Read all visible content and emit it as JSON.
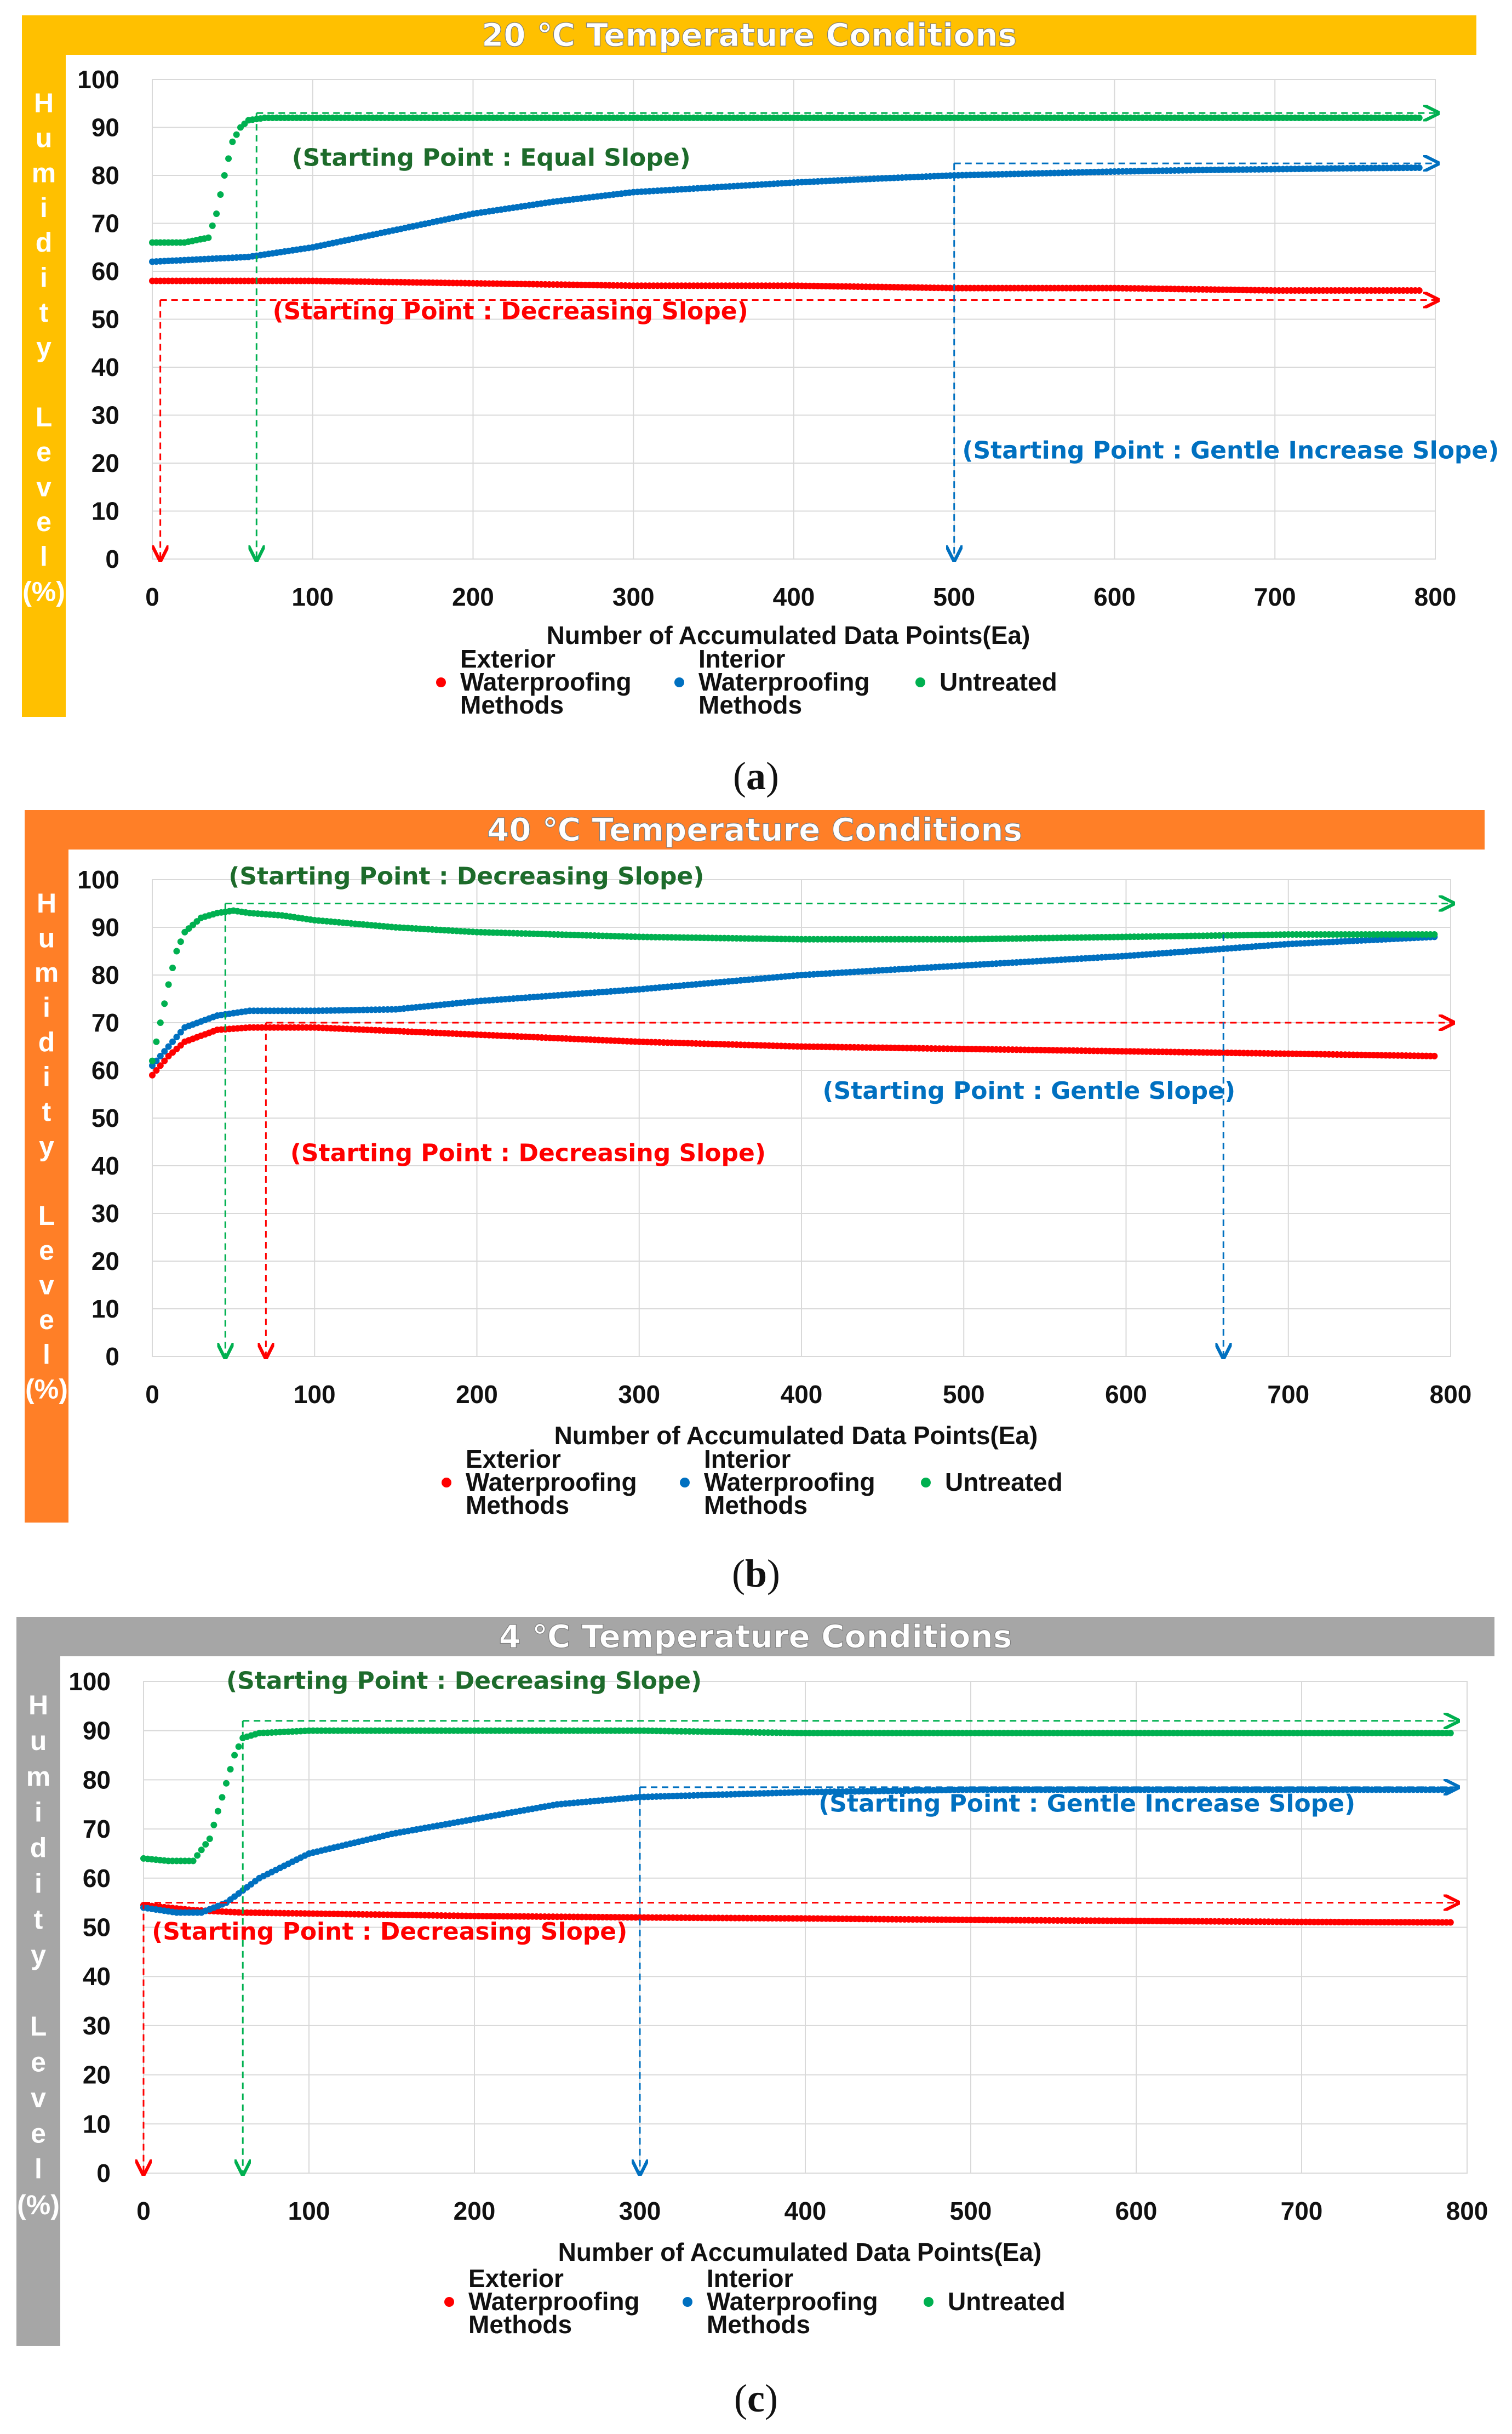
{
  "chart_data": [
    {
      "type": "scatter",
      "id": "a",
      "title": "20 ℃ Temperature Conditions",
      "banner_color": "#FFC000",
      "xlabel": "Number of Accumulated Data Points(Ea)",
      "ylabel": "Humidity Level(%)",
      "ylabel_chars": [
        "H",
        "u",
        "m",
        "i",
        "d",
        "i",
        "t",
        "y",
        "",
        "L",
        "e",
        "v",
        "e",
        "l",
        "(%)"
      ],
      "xlim": [
        0,
        800
      ],
      "ylim": [
        0,
        100
      ],
      "xticks": [
        "0",
        "100",
        "200",
        "300",
        "400",
        "500",
        "600",
        "700",
        "800"
      ],
      "yticks": [
        "0",
        "10",
        "20",
        "30",
        "40",
        "50",
        "60",
        "70",
        "80",
        "90",
        "100"
      ],
      "grid": true,
      "legend": {
        "position": "bottom",
        "entries": [
          {
            "label_lines": [
              "Exterior",
              "Waterproofing",
              "Methods"
            ],
            "color": "#FF0000"
          },
          {
            "label_lines": [
              "Interior",
              "Waterproofing",
              "Methods"
            ],
            "color": "#0070C0"
          },
          {
            "label_lines": [
              "Untreated"
            ],
            "color": "#00B050"
          }
        ]
      },
      "series": [
        {
          "name": "Exterior Waterproofing Methods",
          "color": "#FF0000",
          "x": [
            0,
            50,
            100,
            200,
            300,
            400,
            500,
            600,
            700,
            790
          ],
          "y": [
            58,
            58,
            58,
            57.5,
            57,
            57,
            56.5,
            56.5,
            56,
            56
          ]
        },
        {
          "name": "Interior Waterproofing Methods",
          "color": "#0070C0",
          "x": [
            0,
            30,
            60,
            80,
            100,
            150,
            200,
            250,
            300,
            350,
            400,
            450,
            500,
            550,
            600,
            650,
            700,
            750,
            790
          ],
          "y": [
            62,
            62.5,
            63,
            64,
            65,
            68.5,
            72,
            74.5,
            76.5,
            77.5,
            78.5,
            79.3,
            80,
            80.4,
            80.8,
            81.1,
            81.3,
            81.5,
            81.6
          ]
        },
        {
          "name": "Untreated",
          "color": "#00B050",
          "x": [
            0,
            20,
            35,
            40,
            45,
            50,
            55,
            60,
            70,
            100,
            200,
            300,
            400,
            500,
            600,
            700,
            790
          ],
          "y": [
            66,
            66,
            67,
            72,
            80,
            87,
            90,
            91.5,
            92,
            92,
            92,
            92,
            92,
            92,
            92,
            92,
            92
          ]
        }
      ],
      "annotations": [
        {
          "text": "(Starting Point : Equal Slope)",
          "color": "#1D6B2B",
          "x": 87,
          "y": 82,
          "anchor": "start"
        },
        {
          "text": "(Starting Point : Decreasing Slope)",
          "color": "#FF0000",
          "x": 75,
          "y": 50,
          "anchor": "start"
        },
        {
          "text": "(Starting Point : Gentle Increase Slope)",
          "color": "#0070C0",
          "x": 505,
          "y": 21,
          "anchor": "start"
        }
      ],
      "guides": [
        {
          "color": "#FF0000",
          "x0": 5,
          "y0": 54,
          "x1": 800,
          "y1": 54,
          "down_x": 5
        },
        {
          "color": "#00B050",
          "x0": 65,
          "y0": 93,
          "x1": 800,
          "y1": 93,
          "down_x": 65
        },
        {
          "color": "#0070C0",
          "x0": 500,
          "y0": 82.5,
          "x1": 800,
          "y1": 82.5,
          "down_x": 500
        }
      ],
      "caption": "a"
    },
    {
      "type": "scatter",
      "id": "b",
      "title": "40 ℃ Temperature Conditions",
      "banner_color": "#FF7F27",
      "xlabel": "Number of Accumulated Data Points(Ea)",
      "ylabel": "Humidity Level(%)",
      "ylabel_chars": [
        "H",
        "u",
        "m",
        "i",
        "d",
        "i",
        "t",
        "y",
        "",
        "L",
        "e",
        "v",
        "e",
        "l",
        "(%)"
      ],
      "xlim": [
        0,
        800
      ],
      "ylim": [
        0,
        100
      ],
      "xticks": [
        "0",
        "100",
        "200",
        "300",
        "400",
        "500",
        "600",
        "700",
        "800"
      ],
      "yticks": [
        "0",
        "10",
        "20",
        "30",
        "40",
        "50",
        "60",
        "70",
        "80",
        "90",
        "100"
      ],
      "grid": true,
      "legend": {
        "position": "bottom",
        "entries": [
          {
            "label_lines": [
              "Exterior",
              "Waterproofing",
              "Methods"
            ],
            "color": "#FF0000"
          },
          {
            "label_lines": [
              "Interior",
              "Waterproofing",
              "Methods"
            ],
            "color": "#0070C0"
          },
          {
            "label_lines": [
              "Untreated"
            ],
            "color": "#00B050"
          }
        ]
      },
      "series": [
        {
          "name": "Exterior Waterproofing Methods",
          "color": "#FF0000",
          "x": [
            0,
            10,
            20,
            40,
            60,
            80,
            100,
            200,
            300,
            400,
            500,
            600,
            700,
            790
          ],
          "y": [
            59,
            63,
            66,
            68.5,
            69,
            69,
            69,
            67.5,
            66,
            65,
            64.5,
            64,
            63.5,
            63
          ]
        },
        {
          "name": "Interior Waterproofing Methods",
          "color": "#0070C0",
          "x": [
            0,
            10,
            20,
            40,
            60,
            80,
            100,
            150,
            200,
            300,
            400,
            500,
            600,
            700,
            790
          ],
          "y": [
            61,
            65,
            69,
            71.5,
            72.5,
            72.5,
            72.5,
            72.8,
            74.5,
            77,
            80,
            82,
            84,
            86.5,
            88
          ]
        },
        {
          "name": "Untreated",
          "color": "#00B050",
          "x": [
            0,
            5,
            10,
            15,
            20,
            30,
            40,
            50,
            60,
            80,
            100,
            150,
            200,
            300,
            400,
            500,
            600,
            700,
            790
          ],
          "y": [
            62,
            70,
            78,
            85,
            89,
            92,
            93,
            93.5,
            93,
            92.5,
            91.5,
            90,
            89,
            88,
            87.5,
            87.5,
            88,
            88.5,
            88.5
          ]
        }
      ],
      "annotations": [
        {
          "text": "(Starting Point : Decreasing Slope)",
          "color": "#1D6B2B",
          "x": 47,
          "y": 99,
          "anchor": "start"
        },
        {
          "text": "(Starting Point : Gentle Slope)",
          "color": "#0070C0",
          "x": 413,
          "y": 54,
          "anchor": "start"
        },
        {
          "text": "(Starting Point : Decreasing Slope)",
          "color": "#FF0000",
          "x": 85,
          "y": 41,
          "anchor": "start"
        }
      ],
      "guides": [
        {
          "color": "#00B050",
          "x0": 45,
          "y0": 95,
          "x1": 800,
          "y1": 95,
          "down_x": 45
        },
        {
          "color": "#FF0000",
          "x0": 70,
          "y0": 70,
          "x1": 800,
          "y1": 70,
          "down_x": 70
        },
        {
          "color": "#0070C0",
          "x0": 660,
          "y0": 88.5,
          "x1": 660,
          "y1": 88.5,
          "down_x": 660
        }
      ],
      "caption": "b"
    },
    {
      "type": "scatter",
      "id": "c",
      "title": "4 ℃ Temperature Conditions",
      "banner_color": "#A6A6A6",
      "xlabel": "Number of Accumulated Data Points(Ea)",
      "ylabel": "Humidity Level(%)",
      "ylabel_chars": [
        "H",
        "u",
        "m",
        "i",
        "d",
        "i",
        "t",
        "y",
        "",
        "L",
        "e",
        "v",
        "e",
        "l",
        "(%)"
      ],
      "xlim": [
        0,
        800
      ],
      "ylim": [
        0,
        100
      ],
      "xticks": [
        "0",
        "100",
        "200",
        "300",
        "400",
        "500",
        "600",
        "700",
        "800"
      ],
      "yticks": [
        "0",
        "10",
        "20",
        "30",
        "40",
        "50",
        "60",
        "70",
        "80",
        "90",
        "100"
      ],
      "grid": true,
      "legend": {
        "position": "bottom",
        "entries": [
          {
            "label_lines": [
              "Exterior",
              "Waterproofing",
              "Methods"
            ],
            "color": "#FF0000"
          },
          {
            "label_lines": [
              "Interior",
              "Waterproofing",
              "Methods"
            ],
            "color": "#0070C0"
          },
          {
            "label_lines": [
              "Untreated"
            ],
            "color": "#00B050"
          }
        ]
      },
      "series": [
        {
          "name": "Exterior Waterproofing Methods",
          "color": "#FF0000",
          "x": [
            0,
            30,
            60,
            100,
            200,
            300,
            400,
            500,
            600,
            700,
            790
          ],
          "y": [
            54.5,
            53.5,
            53,
            52.8,
            52.3,
            52,
            51.8,
            51.5,
            51.3,
            51.1,
            51
          ]
        },
        {
          "name": "Interior Waterproofing Methods",
          "color": "#0070C0",
          "x": [
            0,
            20,
            35,
            50,
            70,
            100,
            150,
            200,
            250,
            300,
            350,
            400,
            500,
            600,
            700,
            790
          ],
          "y": [
            54,
            53,
            53,
            55,
            60,
            65,
            69,
            72,
            75,
            76.5,
            77,
            77.5,
            78,
            78,
            78,
            78
          ]
        },
        {
          "name": "Untreated",
          "color": "#00B050",
          "x": [
            0,
            15,
            30,
            40,
            48,
            55,
            60,
            70,
            100,
            200,
            300,
            400,
            500,
            600,
            700,
            790
          ],
          "y": [
            64,
            63.5,
            63.5,
            68,
            77,
            85,
            88.5,
            89.5,
            90,
            90,
            90,
            89.5,
            89.5,
            89.5,
            89.5,
            89.5
          ]
        }
      ],
      "annotations": [
        {
          "text": "(Starting Point : Decreasing Slope)",
          "color": "#1D6B2B",
          "x": 50,
          "y": 98.5,
          "anchor": "start"
        },
        {
          "text": "(Starting Point : Gentle Increase Slope)",
          "color": "#0070C0",
          "x": 408,
          "y": 73.5,
          "anchor": "start"
        },
        {
          "text": "(Starting Point : Decreasing Slope)",
          "color": "#FF0000",
          "x": 5,
          "y": 47.5,
          "anchor": "start"
        }
      ],
      "guides": [
        {
          "color": "#FF0000",
          "x0": 0,
          "y0": 55,
          "x1": 793,
          "y1": 55,
          "down_x": 0
        },
        {
          "color": "#00B050",
          "x0": 60,
          "y0": 92,
          "x1": 793,
          "y1": 92,
          "down_x": 60
        },
        {
          "color": "#0070C0",
          "x0": 300,
          "y0": 78.5,
          "x1": 793,
          "y1": 78.5,
          "down_x": 300
        }
      ],
      "caption": "c"
    }
  ]
}
